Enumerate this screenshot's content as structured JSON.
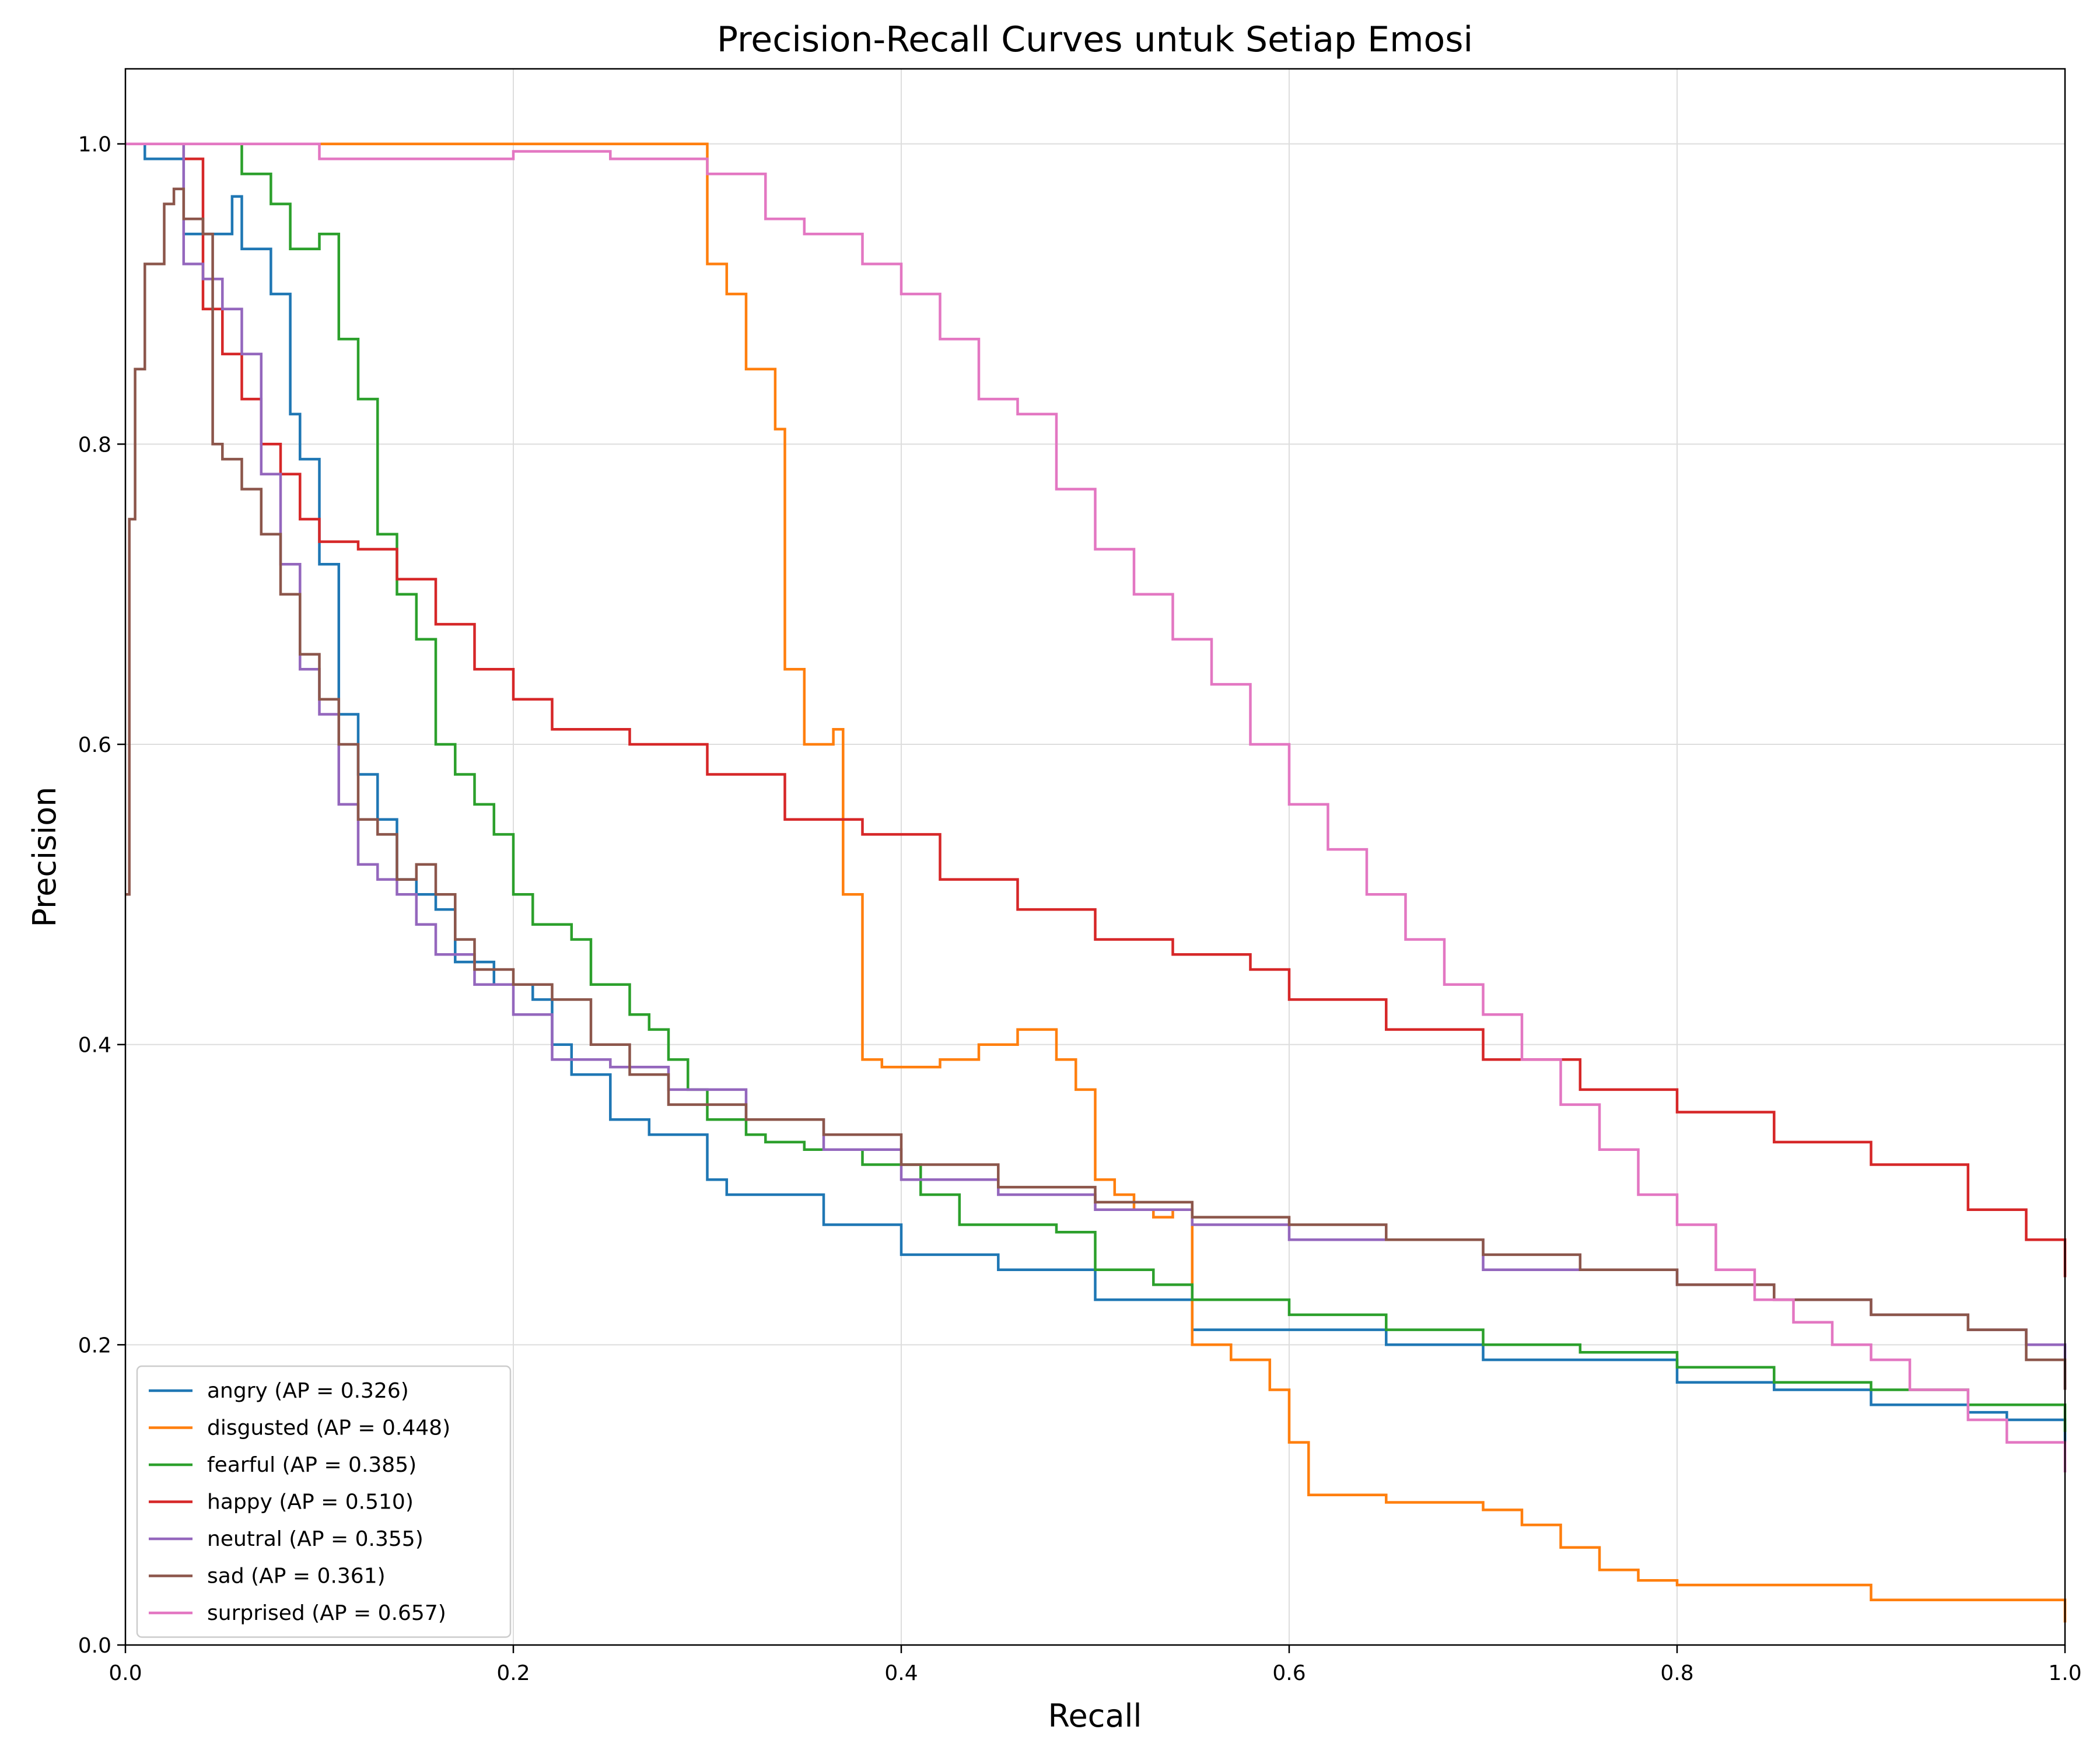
{
  "chart_data": {
    "type": "line",
    "title": "Precision-Recall Curves untuk Setiap Emosi",
    "xlabel": "Recall",
    "ylabel": "Precision",
    "xlim": [
      0.0,
      1.0
    ],
    "ylim": [
      0.0,
      1.05
    ],
    "xticks": [
      "0.0",
      "0.2",
      "0.4",
      "0.6",
      "0.8",
      "1.0"
    ],
    "yticks": [
      "0.0",
      "0.2",
      "0.4",
      "0.6",
      "0.8",
      "1.0"
    ],
    "grid": true,
    "legend_position": "lower-left",
    "series": [
      {
        "name": "angry (AP = 0.326)",
        "color": "#1f77b4",
        "x": [
          0.0,
          0.002,
          0.01,
          0.03,
          0.055,
          0.06,
          0.075,
          0.085,
          0.09,
          0.1,
          0.11,
          0.12,
          0.13,
          0.14,
          0.15,
          0.16,
          0.17,
          0.19,
          0.21,
          0.22,
          0.23,
          0.25,
          0.27,
          0.3,
          0.31,
          0.32,
          0.33,
          0.36,
          0.4,
          0.45,
          0.5,
          0.55,
          0.6,
          0.65,
          0.7,
          0.8,
          0.85,
          0.9,
          0.95,
          0.97,
          1.0
        ],
        "y": [
          1.0,
          1.0,
          0.99,
          0.94,
          0.965,
          0.93,
          0.9,
          0.82,
          0.79,
          0.72,
          0.62,
          0.58,
          0.55,
          0.51,
          0.5,
          0.49,
          0.455,
          0.44,
          0.43,
          0.4,
          0.38,
          0.35,
          0.34,
          0.31,
          0.3,
          0.3,
          0.3,
          0.28,
          0.26,
          0.25,
          0.23,
          0.21,
          0.21,
          0.2,
          0.19,
          0.175,
          0.17,
          0.16,
          0.155,
          0.15,
          0.135
        ]
      },
      {
        "name": "disgusted (AP = 0.448)",
        "color": "#ff7f0e",
        "x": [
          0.0,
          0.0,
          0.25,
          0.29,
          0.3,
          0.31,
          0.32,
          0.335,
          0.34,
          0.35,
          0.365,
          0.37,
          0.38,
          0.39,
          0.42,
          0.44,
          0.46,
          0.48,
          0.49,
          0.5,
          0.51,
          0.52,
          0.53,
          0.54,
          0.55,
          0.57,
          0.59,
          0.6,
          0.61,
          0.62,
          0.65,
          0.7,
          0.72,
          0.74,
          0.76,
          0.78,
          0.8,
          0.9,
          1.0
        ],
        "y": [
          1.0,
          1.0,
          1.0,
          1.0,
          0.92,
          0.9,
          0.85,
          0.81,
          0.65,
          0.6,
          0.61,
          0.5,
          0.39,
          0.385,
          0.39,
          0.4,
          0.41,
          0.39,
          0.37,
          0.31,
          0.3,
          0.29,
          0.285,
          0.29,
          0.2,
          0.19,
          0.17,
          0.135,
          0.1,
          0.1,
          0.095,
          0.09,
          0.08,
          0.065,
          0.05,
          0.043,
          0.04,
          0.03,
          0.015
        ]
      },
      {
        "name": "fearful (AP = 0.385)",
        "color": "#2ca02c",
        "x": [
          0.0,
          0.002,
          0.05,
          0.06,
          0.075,
          0.085,
          0.1,
          0.11,
          0.12,
          0.13,
          0.14,
          0.15,
          0.16,
          0.17,
          0.18,
          0.19,
          0.2,
          0.21,
          0.22,
          0.23,
          0.24,
          0.26,
          0.27,
          0.28,
          0.29,
          0.3,
          0.32,
          0.33,
          0.35,
          0.38,
          0.41,
          0.43,
          0.45,
          0.48,
          0.5,
          0.53,
          0.55,
          0.6,
          0.65,
          0.7,
          0.75,
          0.8,
          0.85,
          0.9,
          0.95,
          1.0
        ],
        "y": [
          1.0,
          1.0,
          1.0,
          0.98,
          0.96,
          0.93,
          0.94,
          0.87,
          0.83,
          0.74,
          0.7,
          0.67,
          0.6,
          0.58,
          0.56,
          0.54,
          0.5,
          0.48,
          0.48,
          0.47,
          0.44,
          0.42,
          0.41,
          0.39,
          0.37,
          0.35,
          0.34,
          0.335,
          0.33,
          0.32,
          0.3,
          0.28,
          0.28,
          0.275,
          0.25,
          0.24,
          0.23,
          0.22,
          0.21,
          0.2,
          0.195,
          0.185,
          0.175,
          0.17,
          0.16,
          0.142
        ]
      },
      {
        "name": "happy (AP = 0.510)",
        "color": "#d62728",
        "x": [
          0.0,
          0.002,
          0.03,
          0.04,
          0.05,
          0.06,
          0.07,
          0.08,
          0.09,
          0.1,
          0.12,
          0.14,
          0.16,
          0.18,
          0.2,
          0.22,
          0.24,
          0.26,
          0.3,
          0.34,
          0.38,
          0.42,
          0.46,
          0.5,
          0.54,
          0.58,
          0.6,
          0.65,
          0.7,
          0.75,
          0.8,
          0.85,
          0.9,
          0.95,
          0.98,
          1.0
        ],
        "y": [
          1.0,
          1.0,
          0.99,
          0.89,
          0.86,
          0.83,
          0.8,
          0.78,
          0.75,
          0.735,
          0.73,
          0.71,
          0.68,
          0.65,
          0.63,
          0.61,
          0.61,
          0.6,
          0.58,
          0.55,
          0.54,
          0.51,
          0.49,
          0.47,
          0.46,
          0.45,
          0.43,
          0.41,
          0.39,
          0.37,
          0.355,
          0.335,
          0.32,
          0.29,
          0.27,
          0.245
        ]
      },
      {
        "name": "neutral (AP = 0.355)",
        "color": "#9467bd",
        "x": [
          0.0,
          0.002,
          0.025,
          0.03,
          0.04,
          0.05,
          0.06,
          0.07,
          0.08,
          0.09,
          0.1,
          0.11,
          0.12,
          0.13,
          0.14,
          0.15,
          0.16,
          0.18,
          0.2,
          0.22,
          0.25,
          0.28,
          0.32,
          0.36,
          0.4,
          0.45,
          0.5,
          0.55,
          0.6,
          0.7,
          0.8,
          0.85,
          0.9,
          0.95,
          0.98,
          1.0
        ],
        "y": [
          1.0,
          1.0,
          1.0,
          0.92,
          0.91,
          0.89,
          0.86,
          0.78,
          0.72,
          0.65,
          0.62,
          0.56,
          0.52,
          0.51,
          0.5,
          0.48,
          0.46,
          0.44,
          0.42,
          0.39,
          0.385,
          0.37,
          0.35,
          0.33,
          0.31,
          0.3,
          0.29,
          0.28,
          0.27,
          0.25,
          0.24,
          0.23,
          0.22,
          0.21,
          0.2,
          0.17
        ]
      },
      {
        "name": "sad (AP = 0.361)",
        "color": "#8c564b",
        "x": [
          0.0,
          0.002,
          0.005,
          0.01,
          0.02,
          0.025,
          0.03,
          0.04,
          0.045,
          0.05,
          0.06,
          0.07,
          0.08,
          0.09,
          0.1,
          0.11,
          0.12,
          0.13,
          0.14,
          0.15,
          0.16,
          0.17,
          0.18,
          0.2,
          0.22,
          0.24,
          0.26,
          0.28,
          0.32,
          0.36,
          0.4,
          0.45,
          0.5,
          0.55,
          0.6,
          0.65,
          0.7,
          0.75,
          0.8,
          0.85,
          0.9,
          0.95,
          0.98,
          1.0
        ],
        "y": [
          0.5,
          0.75,
          0.85,
          0.92,
          0.96,
          0.97,
          0.95,
          0.94,
          0.8,
          0.79,
          0.77,
          0.74,
          0.7,
          0.66,
          0.63,
          0.6,
          0.55,
          0.54,
          0.51,
          0.52,
          0.5,
          0.47,
          0.45,
          0.44,
          0.43,
          0.4,
          0.38,
          0.36,
          0.35,
          0.34,
          0.32,
          0.305,
          0.295,
          0.285,
          0.28,
          0.27,
          0.26,
          0.25,
          0.24,
          0.23,
          0.22,
          0.21,
          0.19,
          0.17
        ]
      },
      {
        "name": "surprised (AP = 0.657)",
        "color": "#e377c2",
        "x": [
          0.0,
          0.002,
          0.1,
          0.1,
          0.2,
          0.25,
          0.3,
          0.33,
          0.35,
          0.38,
          0.4,
          0.42,
          0.44,
          0.46,
          0.48,
          0.5,
          0.52,
          0.54,
          0.56,
          0.58,
          0.6,
          0.62,
          0.64,
          0.66,
          0.68,
          0.7,
          0.72,
          0.74,
          0.76,
          0.78,
          0.8,
          0.82,
          0.84,
          0.86,
          0.88,
          0.9,
          0.92,
          0.95,
          0.97,
          1.0
        ],
        "y": [
          1.0,
          1.0,
          1.0,
          0.99,
          0.995,
          0.99,
          0.98,
          0.95,
          0.94,
          0.92,
          0.9,
          0.87,
          0.83,
          0.82,
          0.77,
          0.73,
          0.7,
          0.67,
          0.64,
          0.6,
          0.56,
          0.53,
          0.5,
          0.47,
          0.44,
          0.42,
          0.39,
          0.36,
          0.33,
          0.3,
          0.28,
          0.25,
          0.23,
          0.215,
          0.2,
          0.19,
          0.17,
          0.15,
          0.135,
          0.115
        ]
      }
    ]
  }
}
